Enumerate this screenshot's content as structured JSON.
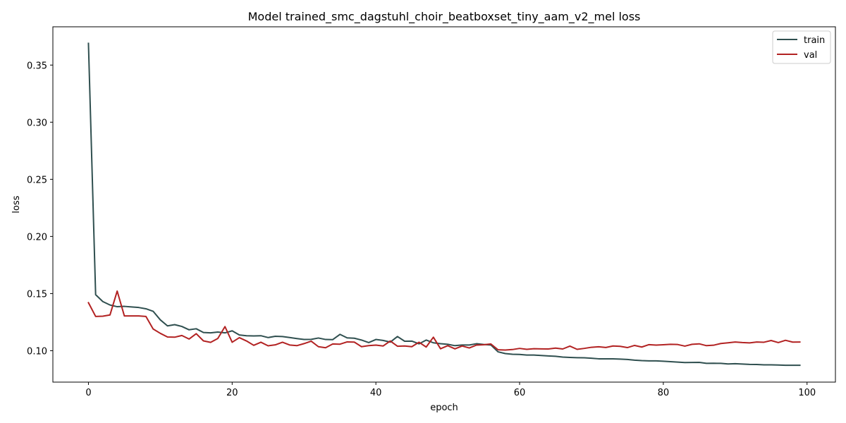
{
  "chart_data": {
    "type": "line",
    "title": "Model trained_smc_dagstuhl_choir_beatboxset_tiny_aam_v2_mel loss",
    "xlabel": "epoch",
    "ylabel": "loss",
    "xlim": [
      -4.95,
      103.95
    ],
    "ylim": [
      0.0725,
      0.3835
    ],
    "xticks": [
      0,
      20,
      40,
      60,
      80,
      100
    ],
    "yticks": [
      0.1,
      0.15,
      0.2,
      0.25,
      0.3,
      0.35
    ],
    "xtick_labels": [
      "0",
      "20",
      "40",
      "60",
      "80",
      "100"
    ],
    "ytick_labels": [
      "0.10",
      "0.15",
      "0.20",
      "0.25",
      "0.30",
      "0.35"
    ],
    "grid": false,
    "legend_position": "top-right",
    "x": [
      0,
      1,
      2,
      3,
      4,
      5,
      6,
      7,
      8,
      9,
      10,
      11,
      12,
      13,
      14,
      15,
      16,
      17,
      18,
      19,
      20,
      21,
      22,
      23,
      24,
      25,
      26,
      27,
      28,
      29,
      30,
      31,
      32,
      33,
      34,
      35,
      36,
      37,
      38,
      39,
      40,
      41,
      42,
      43,
      44,
      45,
      46,
      47,
      48,
      49,
      50,
      51,
      52,
      53,
      54,
      55,
      56,
      57,
      58,
      59,
      60,
      61,
      62,
      63,
      64,
      65,
      66,
      67,
      68,
      69,
      70,
      71,
      72,
      73,
      74,
      75,
      76,
      77,
      78,
      79,
      80,
      81,
      82,
      83,
      84,
      85,
      86,
      87,
      88,
      89,
      90,
      91,
      92,
      93,
      94,
      95,
      96,
      97,
      98,
      99
    ],
    "series": [
      {
        "name": "train",
        "color": "#2f4f4f",
        "values": [
          0.369,
          0.149,
          0.143,
          0.14,
          0.1385,
          0.1388,
          0.1383,
          0.1378,
          0.1367,
          0.1345,
          0.127,
          0.1217,
          0.1228,
          0.1212,
          0.1183,
          0.1192,
          0.1159,
          0.1156,
          0.1163,
          0.1156,
          0.1174,
          0.1138,
          0.1131,
          0.1129,
          0.1131,
          0.1115,
          0.1126,
          0.1124,
          0.1115,
          0.1106,
          0.1098,
          0.1099,
          0.1111,
          0.1098,
          0.1097,
          0.1143,
          0.1112,
          0.1109,
          0.1093,
          0.1071,
          0.1098,
          0.109,
          0.1075,
          0.1124,
          0.1083,
          0.1084,
          0.106,
          0.1093,
          0.1069,
          0.1061,
          0.1056,
          0.1044,
          0.105,
          0.105,
          0.1061,
          0.1054,
          0.105,
          0.099,
          0.0975,
          0.0969,
          0.0967,
          0.0962,
          0.0962,
          0.0958,
          0.0954,
          0.0951,
          0.0944,
          0.0941,
          0.0939,
          0.0938,
          0.0934,
          0.0929,
          0.0929,
          0.0929,
          0.0926,
          0.0923,
          0.0917,
          0.0913,
          0.0911,
          0.0911,
          0.0908,
          0.0904,
          0.09,
          0.0896,
          0.0897,
          0.0898,
          0.0889,
          0.089,
          0.0889,
          0.0884,
          0.0886,
          0.0883,
          0.088,
          0.0879,
          0.0876,
          0.0876,
          0.0875,
          0.0872,
          0.0872,
          0.0872
        ]
      },
      {
        "name": "val",
        "color": "#b22222",
        "values": [
          0.142,
          0.13,
          0.1302,
          0.1313,
          0.1522,
          0.1304,
          0.1304,
          0.1304,
          0.13,
          0.119,
          0.1152,
          0.112,
          0.1118,
          0.1133,
          0.1102,
          0.1149,
          0.1086,
          0.1073,
          0.1107,
          0.1211,
          0.1074,
          0.1114,
          0.1085,
          0.1047,
          0.1074,
          0.1043,
          0.1051,
          0.1074,
          0.105,
          0.1044,
          0.1062,
          0.1083,
          0.1035,
          0.1026,
          0.1059,
          0.1057,
          0.1077,
          0.1075,
          0.1035,
          0.1044,
          0.1049,
          0.1041,
          0.1085,
          0.1039,
          0.1041,
          0.1035,
          0.1074,
          0.1032,
          0.1118,
          0.1017,
          0.1044,
          0.1016,
          0.1041,
          0.1024,
          0.1049,
          0.1052,
          0.1059,
          0.1008,
          0.1006,
          0.101,
          0.102,
          0.1012,
          0.1017,
          0.1016,
          0.1015,
          0.1023,
          0.1015,
          0.104,
          0.1012,
          0.102,
          0.103,
          0.1034,
          0.1028,
          0.1041,
          0.1038,
          0.1027,
          0.1046,
          0.1032,
          0.1053,
          0.1049,
          0.1052,
          0.1056,
          0.1054,
          0.104,
          0.1056,
          0.106,
          0.1044,
          0.1048,
          0.1063,
          0.1069,
          0.1076,
          0.1071,
          0.1068,
          0.1076,
          0.1074,
          0.1089,
          0.1071,
          0.1091,
          0.1075,
          0.1076
        ]
      }
    ]
  }
}
